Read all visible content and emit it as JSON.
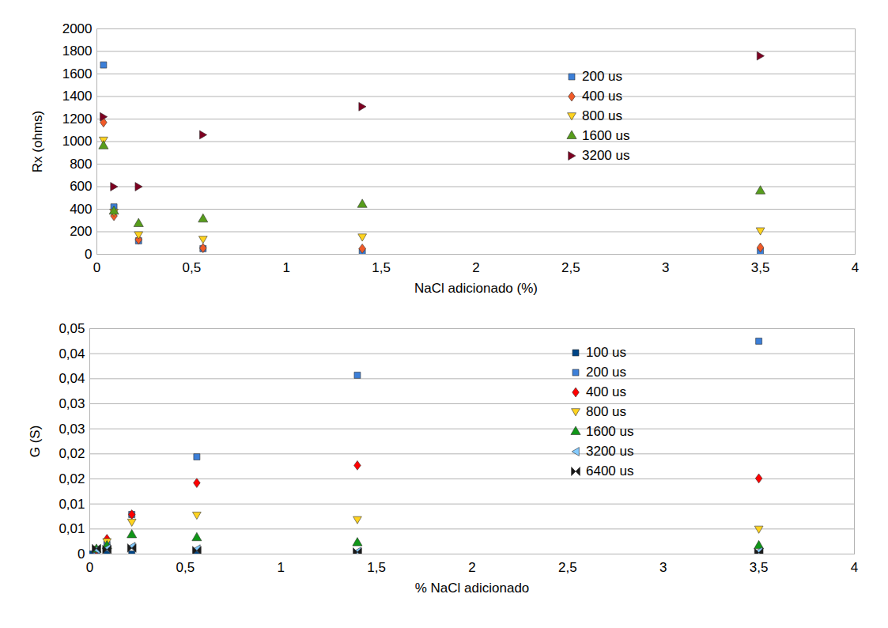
{
  "chart_data": [
    {
      "type": "scatter",
      "x_label": "NaCl adicionado (%)",
      "y_label": "Rx (ohms)",
      "xlim": [
        0,
        4
      ],
      "xticks": [
        0,
        {
          "value": 0.5,
          "label": "0,5"
        },
        1,
        {
          "value": 1.5,
          "label": "1,5"
        },
        2,
        {
          "value": 2.5,
          "label": "2,5"
        },
        3,
        {
          "value": 3.5,
          "label": "3,5"
        },
        4
      ],
      "ylim": [
        0,
        2000
      ],
      "yticks": [
        0,
        200,
        400,
        600,
        800,
        1000,
        1200,
        1400,
        1600,
        1800,
        2000
      ],
      "grid": true,
      "legend": "top-right",
      "x": [
        0.035,
        0.09,
        0.22,
        0.56,
        1.4,
        3.5
      ],
      "series": [
        {
          "name": "200 us",
          "color": "#3c7fd8",
          "marker": "square",
          "values": [
            1680,
            420,
            120,
            50,
            25,
            25
          ]
        },
        {
          "name": "400 us",
          "color": "#f05a28",
          "marker": "diamond",
          "values": [
            1170,
            340,
            130,
            55,
            50,
            60
          ]
        },
        {
          "name": "800 us",
          "color": "#ffd320",
          "marker": "triangle-down",
          "values": [
            1010,
            370,
            170,
            130,
            150,
            205
          ]
        },
        {
          "name": "1600 us",
          "color": "#579d1c",
          "marker": "triangle",
          "values": [
            960,
            380,
            270,
            310,
            440,
            560
          ]
        },
        {
          "name": "3200 us",
          "color": "#7e0021",
          "marker": "triangle-right",
          "values": [
            1220,
            600,
            600,
            1060,
            1310,
            1760
          ]
        }
      ]
    },
    {
      "type": "scatter",
      "x_label": "% NaCl adicionado",
      "y_label": "G (S)",
      "xlim": [
        0,
        4
      ],
      "xticks": [
        0,
        {
          "value": 0.5,
          "label": "0,5"
        },
        1,
        {
          "value": 1.5,
          "label": "1,5"
        },
        2,
        {
          "value": 2.5,
          "label": "2,5"
        },
        3,
        {
          "value": 3.5,
          "label": "3,5"
        },
        4
      ],
      "ylim": [
        0,
        0.045
      ],
      "yticks": [
        0,
        {
          "value": 0.005,
          "label": "0,01"
        },
        {
          "value": 0.01,
          "label": "0,01"
        },
        {
          "value": 0.015,
          "label": "0,02"
        },
        {
          "value": 0.02,
          "label": "0,02"
        },
        {
          "value": 0.025,
          "label": "0,03"
        },
        {
          "value": 0.03,
          "label": "0,03"
        },
        {
          "value": 0.035,
          "label": "0,04"
        },
        {
          "value": 0.04,
          "label": "0,04"
        },
        {
          "value": 0.045,
          "label": "0,05"
        }
      ],
      "grid": true,
      "legend": "top-right",
      "x": [
        0,
        0.035,
        0.09,
        0.22,
        0.56,
        1.4,
        3.5
      ],
      "series": [
        {
          "name": "100 us",
          "color": "#004586",
          "marker": "square",
          "values": [
            0,
            0.0001,
            0,
            0,
            0,
            0,
            0
          ]
        },
        {
          "name": "200 us",
          "color": "#3c7fd8",
          "marker": "square",
          "values": [
            null,
            0.0005,
            0.0019,
            0.0079,
            0.0194,
            0.0357,
            0.0425
          ]
        },
        {
          "name": "400 us",
          "color": "#ff0000",
          "marker": "diamond",
          "values": [
            null,
            0.0008,
            0.003,
            0.0079,
            0.0142,
            0.0177,
            0.0151
          ]
        },
        {
          "name": "800 us",
          "color": "#ffd320",
          "marker": "triangle-down",
          "values": [
            null,
            0.0009,
            0.0024,
            0.0063,
            0.0077,
            0.0068,
            0.0049
          ]
        },
        {
          "name": "1600 us",
          "color": "#109618",
          "marker": "triangle",
          "values": [
            null,
            0.0009,
            0.0016,
            0.0038,
            0.0032,
            0.0022,
            0.0016
          ]
        },
        {
          "name": "3200 us",
          "color": "#83caff",
          "marker": "triangle-left",
          "values": [
            null,
            0.0009,
            0.0011,
            0.0015,
            0.001,
            0.0005,
            0.0005
          ]
        },
        {
          "name": "6400 us",
          "color": "#1a1a1a",
          "marker": "bowtie",
          "values": [
            null,
            0.0011,
            0.0009,
            0.0012,
            0.0007,
            0.0004,
            0.0003
          ]
        }
      ]
    }
  ]
}
